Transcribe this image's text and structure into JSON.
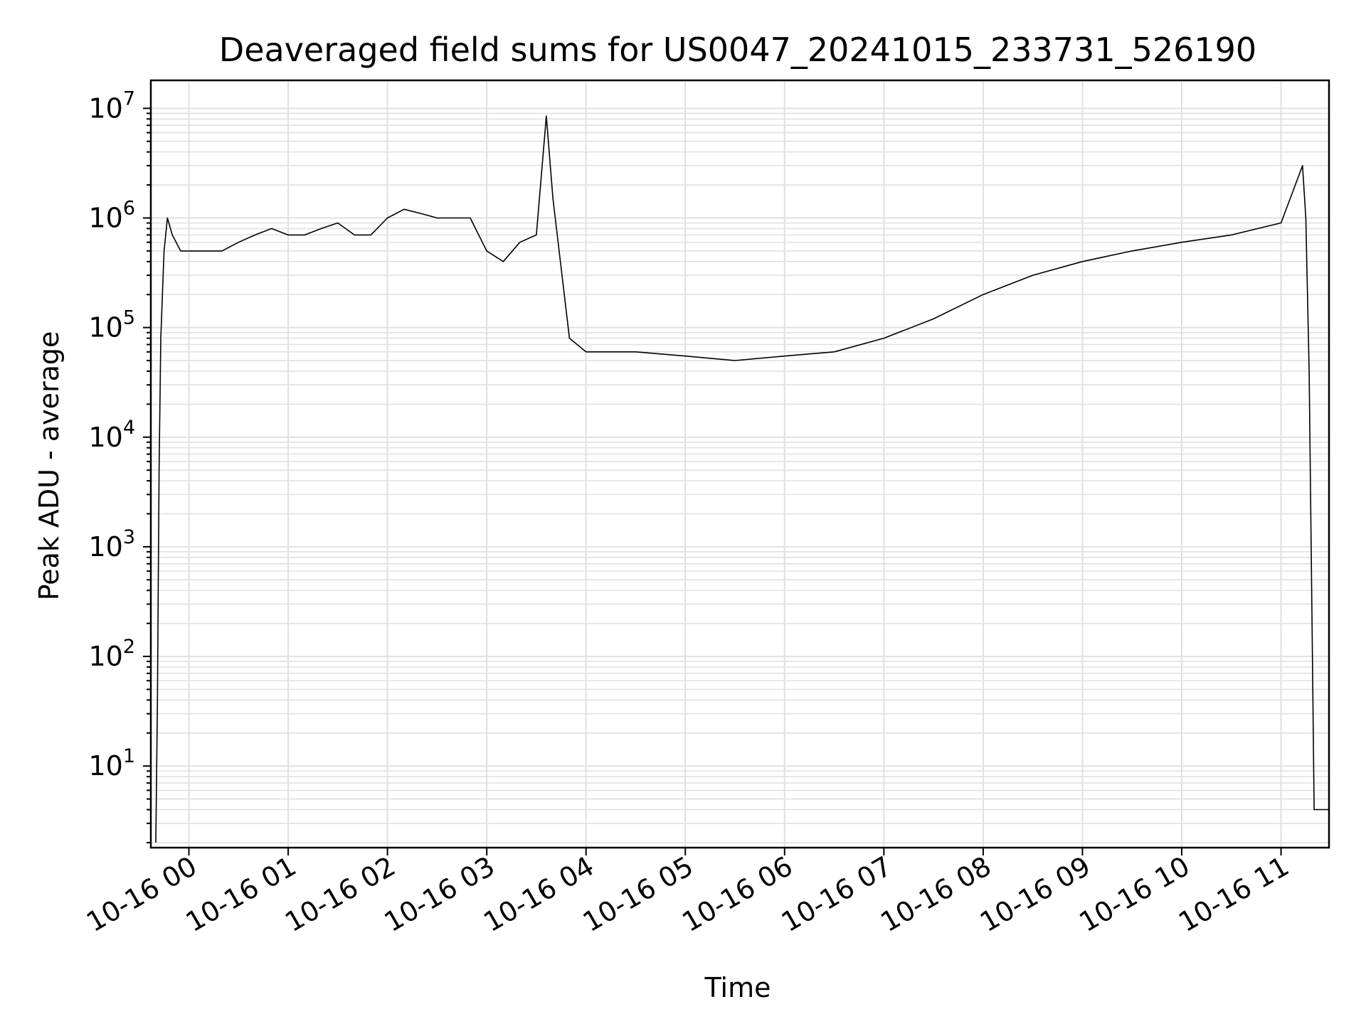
{
  "chart_data": {
    "type": "line",
    "title": "Deaveraged field sums for US0047_20241015_233731_526190",
    "xlabel": "Time",
    "ylabel": "Peak ADU - average",
    "yscale": "log",
    "grid": true,
    "line_color": "#000000",
    "grid_color": "#e0e0e0",
    "x_ticks": [
      "10-16 00",
      "10-16 01",
      "10-16 02",
      "10-16 03",
      "10-16 04",
      "10-16 05",
      "10-16 06",
      "10-16 07",
      "10-16 08",
      "10-16 09",
      "10-16 10",
      "10-16 11"
    ],
    "y_ticks": [
      {
        "base": "10",
        "exp": "1"
      },
      {
        "base": "10",
        "exp": "2"
      },
      {
        "base": "10",
        "exp": "3"
      },
      {
        "base": "10",
        "exp": "4"
      },
      {
        "base": "10",
        "exp": "5"
      },
      {
        "base": "10",
        "exp": "6"
      },
      {
        "base": "10",
        "exp": "7"
      }
    ],
    "xlim": [
      "2024-10-15 23:37",
      "2024-10-16 11:29"
    ],
    "ylim": [
      1.8,
      18000000
    ],
    "series": [
      {
        "x": [
          "2024-10-15 23:40",
          "2024-10-15 23:41",
          "2024-10-15 23:42",
          "2024-10-15 23:43",
          "2024-10-15 23:45",
          "2024-10-15 23:47",
          "2024-10-15 23:50",
          "2024-10-15 23:55",
          "2024-10-16 00:00",
          "2024-10-16 00:10",
          "2024-10-16 00:20",
          "2024-10-16 00:30",
          "2024-10-16 00:40",
          "2024-10-16 00:50",
          "2024-10-16 01:00",
          "2024-10-16 01:10",
          "2024-10-16 01:20",
          "2024-10-16 01:30",
          "2024-10-16 01:40",
          "2024-10-16 01:50",
          "2024-10-16 02:00",
          "2024-10-16 02:10",
          "2024-10-16 02:20",
          "2024-10-16 02:30",
          "2024-10-16 02:40",
          "2024-10-16 02:50",
          "2024-10-16 03:00",
          "2024-10-16 03:10",
          "2024-10-16 03:20",
          "2024-10-16 03:30",
          "2024-10-16 03:36",
          "2024-10-16 03:40",
          "2024-10-16 03:50",
          "2024-10-16 04:00",
          "2024-10-16 04:30",
          "2024-10-16 05:00",
          "2024-10-16 05:30",
          "2024-10-16 06:00",
          "2024-10-16 06:30",
          "2024-10-16 07:00",
          "2024-10-16 07:30",
          "2024-10-16 08:00",
          "2024-10-16 08:30",
          "2024-10-16 09:00",
          "2024-10-16 09:30",
          "2024-10-16 10:00",
          "2024-10-16 10:30",
          "2024-10-16 11:00",
          "2024-10-16 11:13",
          "2024-10-16 11:15",
          "2024-10-16 11:17",
          "2024-10-16 11:19",
          "2024-10-16 11:20",
          "2024-10-16 11:22",
          "2024-10-16 11:29"
        ],
        "y": [
          2,
          40,
          5000,
          80000,
          500000,
          1000000,
          700000,
          500000,
          500000,
          500000,
          500000,
          600000,
          700000,
          800000,
          700000,
          700000,
          800000,
          900000,
          700000,
          700000,
          1000000,
          1200000,
          1100000,
          1000000,
          1000000,
          1000000,
          500000,
          400000,
          600000,
          700000,
          8500000,
          1500000,
          80000,
          60000,
          60000,
          55000,
          50000,
          55000,
          60000,
          80000,
          120000,
          200000,
          300000,
          400000,
          500000,
          600000,
          700000,
          900000,
          3000000,
          1000000,
          40000,
          100,
          4,
          4,
          4
        ]
      }
    ]
  }
}
